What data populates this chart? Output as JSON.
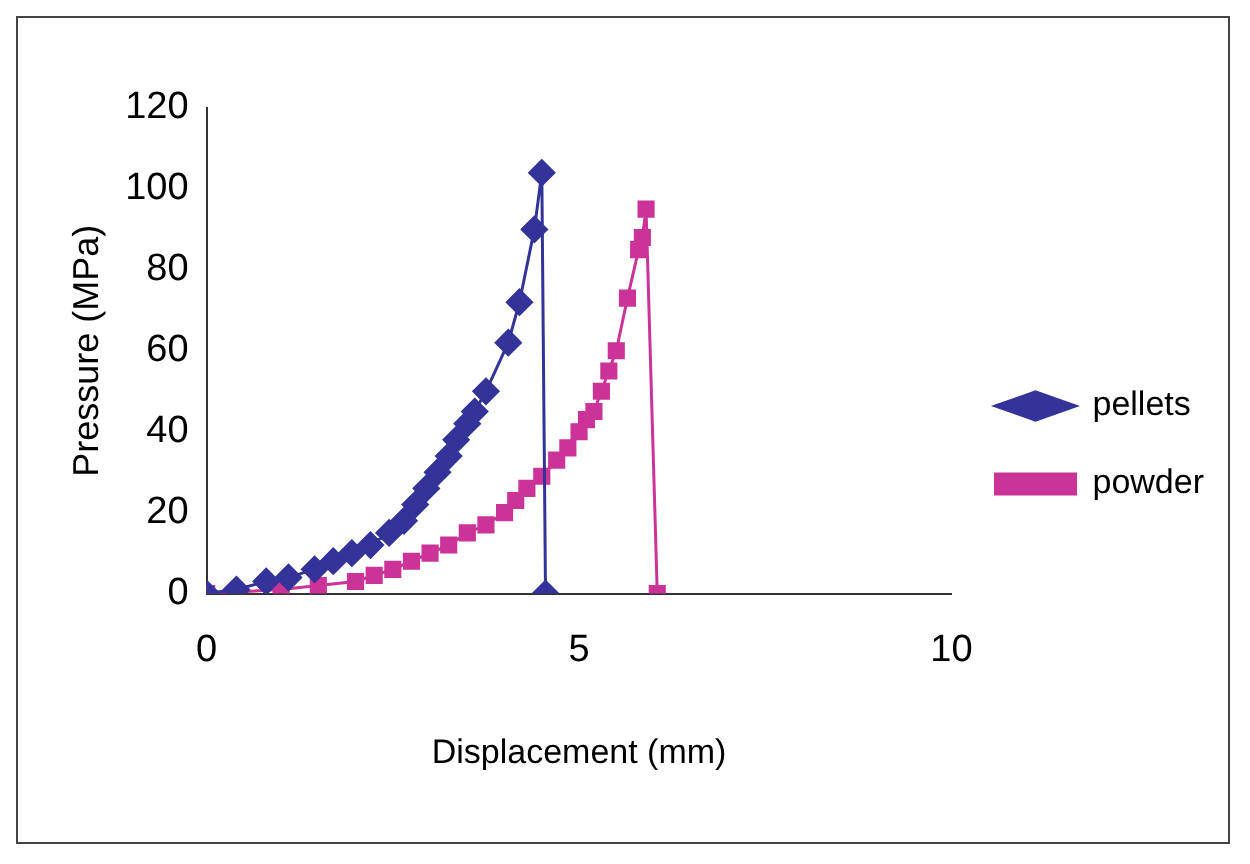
{
  "chart_data": {
    "type": "line",
    "xlabel": "Displacement (mm)",
    "ylabel": "Pressure (MPa)",
    "xlim": [
      0,
      10
    ],
    "xticks": [
      0,
      5,
      10
    ],
    "ylim": [
      0,
      120
    ],
    "yticks": [
      0,
      20,
      40,
      60,
      80,
      100,
      120
    ],
    "grid": false,
    "legend": "right",
    "series": [
      {
        "name": "pellets",
        "color": "#333399",
        "marker": "diamond",
        "x": [
          0,
          0.4,
          0.8,
          1.1,
          1.45,
          1.7,
          1.95,
          2.2,
          2.45,
          2.65,
          2.8,
          2.95,
          3.1,
          3.25,
          3.35,
          3.5,
          3.6,
          3.75,
          4.05,
          4.2,
          4.4,
          4.5,
          4.55
        ],
        "values": [
          0,
          1,
          3,
          4,
          6,
          8,
          10,
          12,
          15,
          18,
          22,
          26,
          30,
          34,
          38,
          42,
          45,
          50,
          62,
          72,
          90,
          104,
          0
        ]
      },
      {
        "name": "powder",
        "color": "#cc3399",
        "marker": "square",
        "x": [
          0,
          1,
          1.5,
          2,
          2.25,
          2.5,
          2.75,
          3,
          3.25,
          3.5,
          3.75,
          4,
          4.15,
          4.3,
          4.5,
          4.7,
          4.85,
          5,
          5.1,
          5.2,
          5.3,
          5.4,
          5.5,
          5.65,
          5.8,
          5.85,
          5.9,
          6.05
        ],
        "values": [
          0,
          1,
          2,
          3,
          4.5,
          6,
          8,
          10,
          12,
          15,
          17,
          20,
          23,
          26,
          29,
          33,
          36,
          40,
          43,
          45,
          50,
          55,
          60,
          73,
          85,
          88,
          95,
          0
        ]
      }
    ]
  }
}
